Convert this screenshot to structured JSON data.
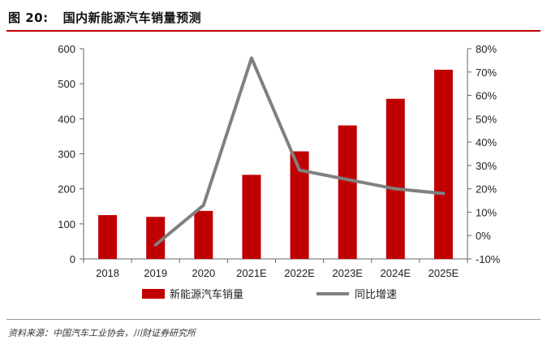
{
  "figure": {
    "label": "图 20:",
    "title": "国内新能源汽车销量预测",
    "source": "资料来源：中国汽车工业协会，川财证券研究所"
  },
  "colors": {
    "bar": "#c00000",
    "line": "#808080",
    "title_rule": "#c00000"
  },
  "chart_data": {
    "type": "bar",
    "categories": [
      "2018",
      "2019",
      "2020",
      "2021E",
      "2022E",
      "2023E",
      "2024E",
      "2025E"
    ],
    "series": [
      {
        "name": "新能源汽车销量",
        "type": "bar",
        "axis": "left",
        "values": [
          125,
          120,
          137,
          240,
          307,
          381,
          457,
          540
        ]
      },
      {
        "name": "同比增速",
        "type": "line",
        "axis": "right",
        "values": [
          null,
          -4,
          13,
          76,
          28,
          24,
          20,
          18
        ]
      }
    ],
    "y_left": {
      "min": 0,
      "max": 600,
      "ticks": [
        "0",
        "100",
        "200",
        "300",
        "400",
        "500",
        "600"
      ]
    },
    "y_right": {
      "min": -10,
      "max": 80,
      "ticks": [
        "-10%",
        "0%",
        "10%",
        "20%",
        "30%",
        "40%",
        "50%",
        "60%",
        "70%",
        "80%"
      ]
    },
    "grid": false,
    "legend": "bottom"
  }
}
